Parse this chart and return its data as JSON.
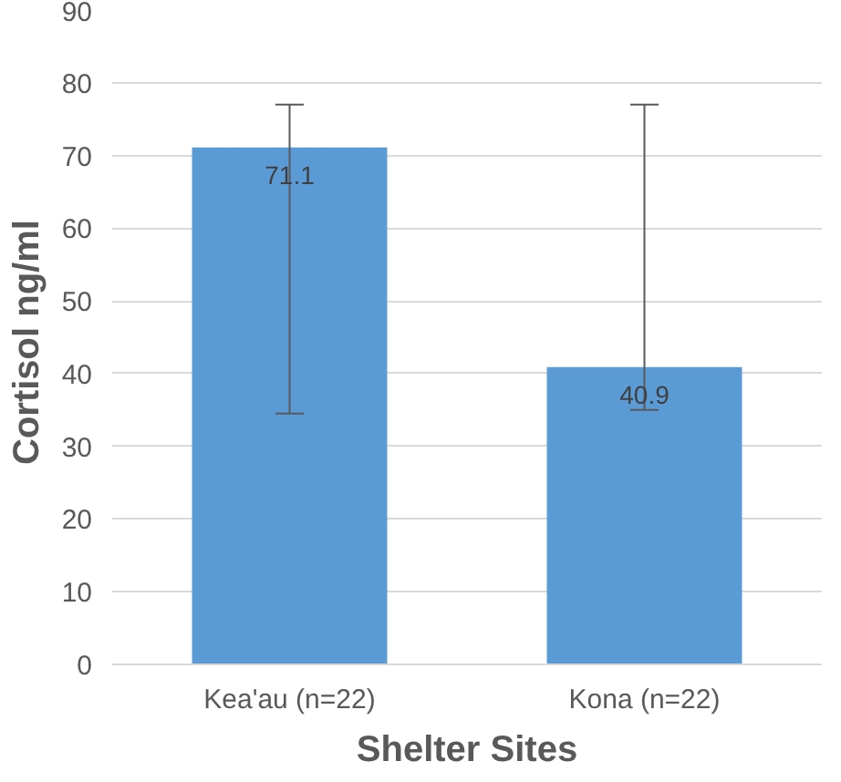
{
  "chart_data": {
    "type": "bar",
    "xlabel": "Shelter Sites",
    "ylabel": "Cortisol  ng/ml",
    "categories": [
      "Kea'au (n=22)",
      "Kona (n=22)"
    ],
    "values": [
      71.1,
      40.9
    ],
    "color": "#5b9bd5",
    "errors": [
      [
        34.5,
        77
      ],
      [
        35,
        77
      ]
    ],
    "data_labels": true,
    "ylim": [
      0,
      90
    ],
    "yticks": [
      0,
      10,
      20,
      30,
      40,
      50,
      60,
      70,
      80,
      90
    ],
    "grid": "y"
  }
}
